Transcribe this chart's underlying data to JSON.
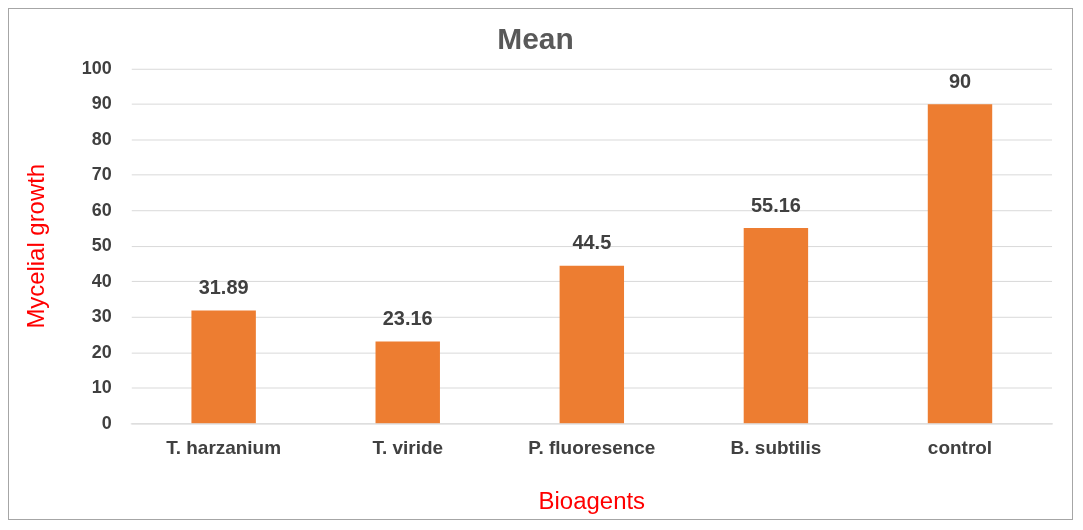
{
  "chart_data": {
    "type": "bar",
    "title": "Mean",
    "xlabel": "Bioagents",
    "ylabel": "Mycelial growth",
    "categories": [
      "T. harzanium",
      "T. viride",
      "P. fluoresence",
      "B. subtilis",
      "control"
    ],
    "values": [
      31.89,
      23.16,
      44.5,
      55.16,
      90
    ],
    "color": "#ed7d31",
    "ylim": [
      0,
      100
    ],
    "yticks": [
      0,
      10,
      20,
      30,
      40,
      50,
      60,
      70,
      80,
      90,
      100
    ],
    "grid": "y",
    "data_labels": true
  }
}
